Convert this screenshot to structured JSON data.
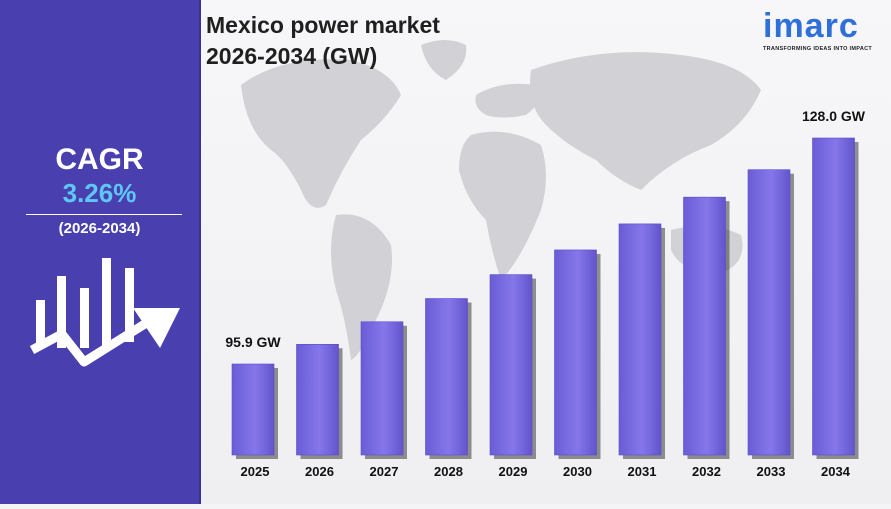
{
  "sidebar": {
    "cagr_label": "CAGR",
    "cagr_value": "3.26%",
    "cagr_period": "(2026-2034)",
    "icon": "growth-bars-arrow-icon"
  },
  "brand": {
    "name": "imarc",
    "tagline": "TRANSFORMING IDEAS INTO IMPACT"
  },
  "title_line1": "Mexico power market",
  "title_line2": "2026-2034 (GW)",
  "colors": {
    "sidebar": "#4a3fae",
    "bar": "#7c6fe0",
    "cagr_value": "#5ec8f5",
    "brand": "#2e6fd9"
  },
  "chart_data": {
    "type": "bar",
    "title": "Mexico power market 2026-2034 (GW)",
    "categories": [
      "2025",
      "2026",
      "2027",
      "2028",
      "2029",
      "2030",
      "2031",
      "2032",
      "2033",
      "2034"
    ],
    "values": [
      95.9,
      98.7,
      101.9,
      105.2,
      108.6,
      112.1,
      115.8,
      119.6,
      123.5,
      128.0
    ],
    "data_labels": [
      {
        "category": "2025",
        "text": "95.9 GW"
      },
      {
        "category": "2034",
        "text": "128.0 GW"
      }
    ],
    "unit": "GW",
    "grid": false,
    "legend": "none"
  }
}
